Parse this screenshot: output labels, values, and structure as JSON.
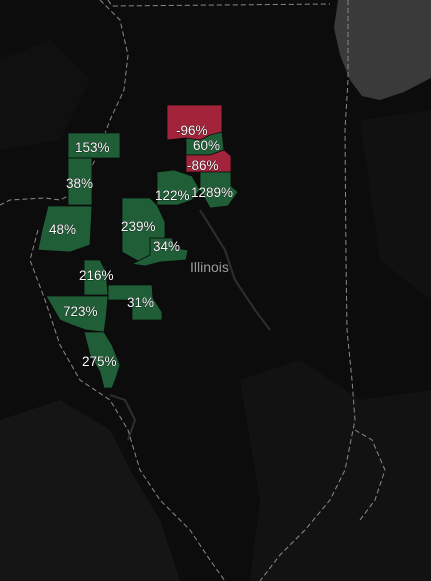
{
  "map": {
    "state_label": "Illinois",
    "positive_color": "#1f5e37",
    "negative_color": "#a3233a",
    "counties": [
      {
        "id": "c1",
        "label": "-96%",
        "value": -96
      },
      {
        "id": "c2",
        "label": "60%",
        "value": 60
      },
      {
        "id": "c3",
        "label": "-86%",
        "value": -86
      },
      {
        "id": "c4",
        "label": "153%",
        "value": 153
      },
      {
        "id": "c5",
        "label": "38%",
        "value": 38
      },
      {
        "id": "c6",
        "label": "122%",
        "value": 122
      },
      {
        "id": "c7",
        "label": "1289%",
        "value": 1289
      },
      {
        "id": "c8",
        "label": "48%",
        "value": 48
      },
      {
        "id": "c9",
        "label": "239%",
        "value": 239
      },
      {
        "id": "c10",
        "label": "34%",
        "value": 34
      },
      {
        "id": "c11",
        "label": "216%",
        "value": 216
      },
      {
        "id": "c12",
        "label": "31%",
        "value": 31
      },
      {
        "id": "c13",
        "label": "723%",
        "value": 723
      },
      {
        "id": "c14",
        "label": "275%",
        "value": 275
      }
    ]
  }
}
